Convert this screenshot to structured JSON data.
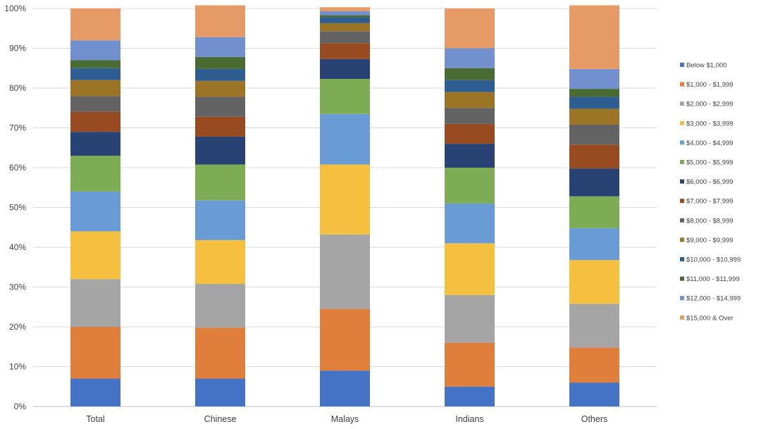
{
  "chart_data": {
    "type": "bar",
    "stacked": true,
    "percent": true,
    "title": "",
    "xlabel": "",
    "ylabel": "",
    "ylim": [
      0,
      100
    ],
    "y_ticks": [
      "0%",
      "10%",
      "20%",
      "30%",
      "40%",
      "50%",
      "60%",
      "70%",
      "80%",
      "90%",
      "100%"
    ],
    "grid": true,
    "legend_position": "right",
    "categories": [
      "Total",
      "Chinese",
      "Malays",
      "Indians",
      "Others"
    ],
    "series": [
      {
        "name": "Below $1,000",
        "color": "#4472c4",
        "values": [
          7.0,
          7.0,
          9.0,
          5.0,
          6.0
        ]
      },
      {
        "name": "$1,000 - $1,999",
        "color": "#e07e3c",
        "values": [
          13.0,
          12.8,
          15.5,
          11.0,
          8.8
        ]
      },
      {
        "name": "$2,000 - $2,999",
        "color": "#a5a5a5",
        "values": [
          12.0,
          11.0,
          18.7,
          12.0,
          11.0
        ]
      },
      {
        "name": "$3,000 - $3,999",
        "color": "#f5bf3f",
        "values": [
          12.0,
          11.0,
          17.6,
          13.0,
          11.0
        ]
      },
      {
        "name": "$4,000 - $4,999",
        "color": "#699cd4",
        "values": [
          10.0,
          10.0,
          12.7,
          10.0,
          8.0
        ]
      },
      {
        "name": "$5,000 - $5,999",
        "color": "#7dac54",
        "values": [
          9.0,
          9.0,
          8.8,
          9.0,
          8.0
        ]
      },
      {
        "name": "$6,000 - $6,999",
        "color": "#284373",
        "values": [
          6.0,
          7.0,
          5.0,
          6.0,
          7.0
        ]
      },
      {
        "name": "$7,000 - $7,999",
        "color": "#984b20",
        "values": [
          5.0,
          5.0,
          4.0,
          5.0,
          6.0
        ]
      },
      {
        "name": "$8,000 - $8,999",
        "color": "#636363",
        "values": [
          4.0,
          5.0,
          3.0,
          4.0,
          5.0
        ]
      },
      {
        "name": "$9,000 - $9,999",
        "color": "#9b7425",
        "values": [
          4.0,
          4.0,
          2.0,
          4.0,
          4.0
        ]
      },
      {
        "name": "$10,000 - $10,999",
        "color": "#2d5d91",
        "values": [
          3.0,
          3.0,
          1.5,
          3.0,
          3.0
        ]
      },
      {
        "name": "$11,000 - $11,999",
        "color": "#4a6b32",
        "values": [
          2.0,
          3.0,
          0.5,
          3.0,
          2.0
        ]
      },
      {
        "name": "$12,000 - $14,999",
        "color": "#7290cd",
        "values": [
          5.0,
          5.0,
          1.0,
          5.0,
          5.0
        ]
      },
      {
        "name": "$15,000 & Over",
        "color": "#e69b66",
        "values": [
          8.0,
          8.0,
          1.0,
          10.0,
          16.0
        ]
      }
    ]
  }
}
